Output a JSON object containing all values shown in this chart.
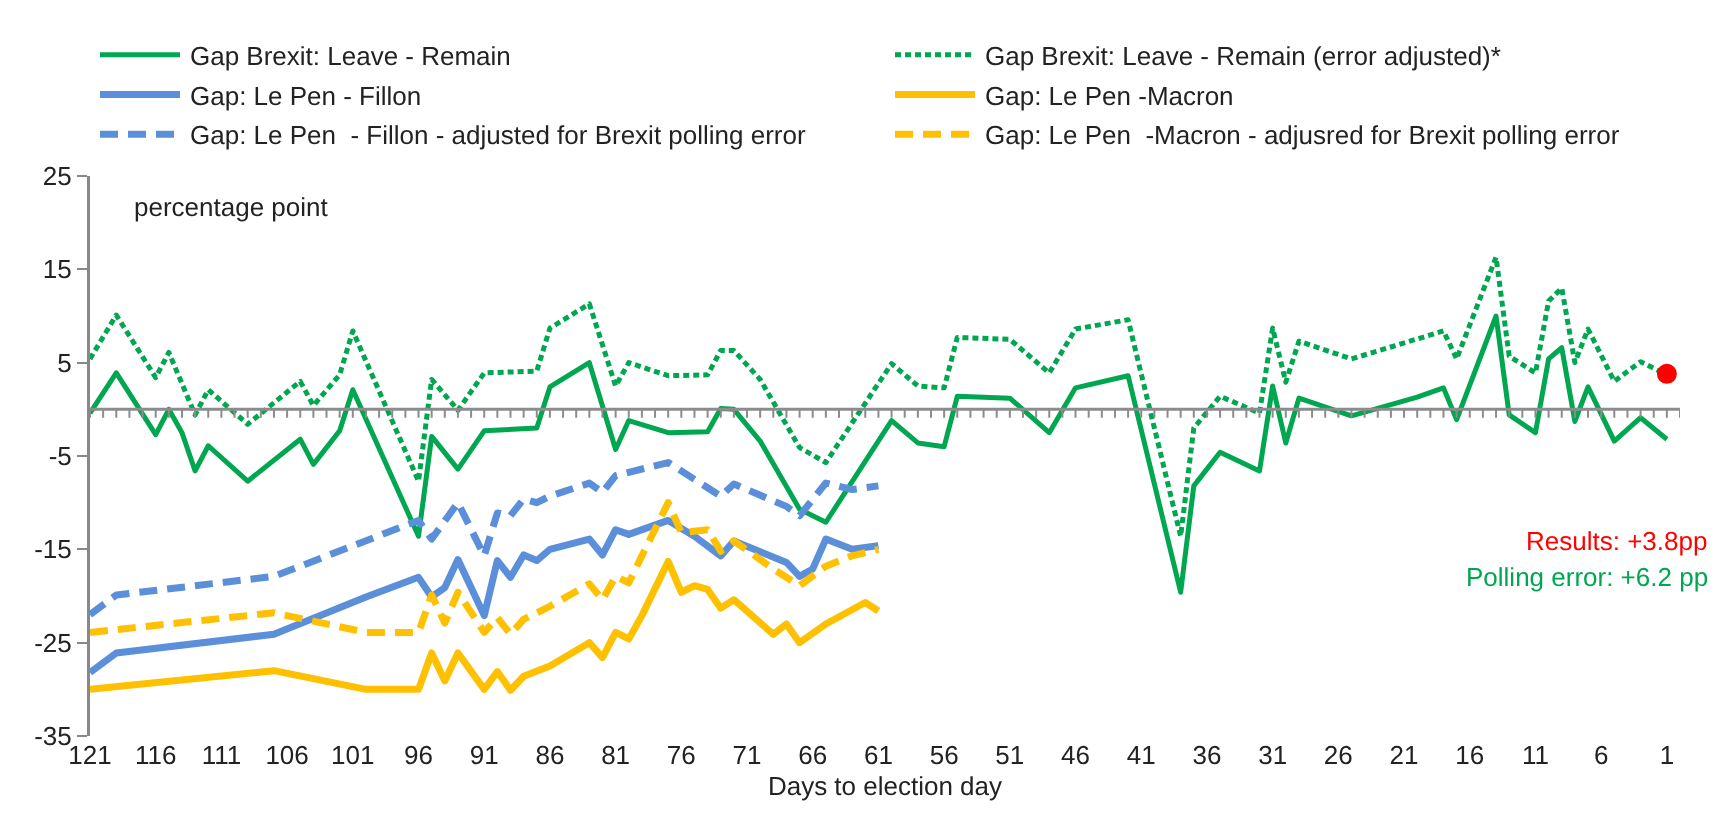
{
  "chart_data": {
    "type": "line",
    "xlabel": "Days to election day",
    "ylabel": "percentage point",
    "xlim": [
      121,
      0
    ],
    "xticks": [
      121,
      116,
      111,
      106,
      101,
      96,
      91,
      86,
      81,
      76,
      71,
      66,
      61,
      56,
      51,
      46,
      41,
      36,
      31,
      26,
      21,
      16,
      11,
      6,
      1
    ],
    "ylim": [
      -35,
      25
    ],
    "yticks": [
      -35,
      -25,
      -15,
      -5,
      5,
      15,
      25
    ],
    "grid": false,
    "legend": "top",
    "marker": "none",
    "ref_lines": [
      {
        "axis": "y",
        "value": 0,
        "color": "#8c8c8c"
      }
    ],
    "series": [
      {
        "name": "Gap Brexit: Leave - Remain",
        "color": "#00a650",
        "line_style": "solid",
        "x": [
          121,
          119,
          116,
          115,
          114,
          113,
          112,
          109,
          105,
          104,
          102,
          101,
          96,
          95,
          93,
          91,
          87,
          86,
          83,
          81,
          80,
          77,
          74,
          73,
          72,
          70,
          67,
          65,
          60,
          58,
          56,
          55,
          51,
          48,
          46,
          42,
          38,
          37,
          35,
          32,
          31,
          30,
          29,
          25,
          20,
          18,
          17,
          14,
          13,
          11,
          10,
          9,
          8,
          7,
          5,
          3,
          1
        ],
        "values": [
          -0.4,
          3.9,
          -2.7,
          0,
          -2.5,
          -6.6,
          -3.9,
          -7.7,
          -3.2,
          -5.9,
          -2.3,
          2.1,
          -13.6,
          -2.9,
          -6.4,
          -2.3,
          -2,
          2.4,
          5,
          -4.3,
          -1.2,
          -2.5,
          -2.4,
          0.1,
          0,
          -3.4,
          -10.7,
          -12.1,
          -1.2,
          -3.6,
          -4,
          1.4,
          1.2,
          -2.5,
          2.3,
          3.6,
          -19.6,
          -8.2,
          -4.6,
          -6.6,
          2.5,
          -3.6,
          1.2,
          -0.7,
          1.3,
          2.3,
          -1.1,
          10,
          -0.6,
          -2.5,
          5.4,
          6.6,
          -1.3,
          2.4,
          -3.4,
          -0.9,
          -3.2
        ]
      },
      {
        "name": "Gap Brexit: Leave - Remain (error adjusted)*",
        "color": "#00a650",
        "line_style": "dotted",
        "x": [
          121,
          119,
          116,
          115,
          113,
          112,
          109,
          105,
          104,
          102,
          101,
          96,
          95,
          93,
          91,
          87,
          86,
          83,
          81,
          80,
          77,
          74,
          73,
          72,
          70,
          67,
          65,
          60,
          58,
          56,
          55,
          51,
          48,
          46,
          42,
          38,
          37,
          35,
          32,
          31,
          30,
          29,
          25,
          18,
          17,
          14,
          13,
          11,
          10,
          9,
          8,
          7,
          5,
          3,
          1
        ],
        "values": [
          5.4,
          10.1,
          3.4,
          6.1,
          -0.6,
          2.1,
          -1.6,
          3,
          0.4,
          3.7,
          8.4,
          -7.7,
          3.2,
          -0.1,
          3.9,
          4.1,
          8.7,
          11.3,
          2.5,
          5,
          3.6,
          3.7,
          6.3,
          6.3,
          3.2,
          -4.1,
          -5.7,
          4.9,
          2.5,
          2.3,
          7.7,
          7.5,
          3.9,
          8.6,
          9.6,
          -13.6,
          -2,
          1.4,
          -0.4,
          8.7,
          2.9,
          7.3,
          5.4,
          8.4,
          5.4,
          16.3,
          5.7,
          3.9,
          11.6,
          13,
          5,
          8.6,
          3,
          5.1,
          3.7
        ]
      },
      {
        "name": "Gap: Le Pen - Fillon",
        "color": "#5b8fd9",
        "line_style": "solid",
        "x": [
          121,
          119,
          107,
          100,
          96,
          95,
          94,
          93,
          91,
          90,
          89,
          88,
          87,
          86,
          83,
          82,
          81,
          80,
          77,
          75,
          73,
          72,
          68,
          67,
          66,
          65,
          63,
          61
        ],
        "values": [
          -28.2,
          -26.1,
          -24.1,
          -20.1,
          -18,
          -20.1,
          -19.1,
          -16.1,
          -22.1,
          -16.2,
          -18,
          -15.6,
          -16.2,
          -15,
          -13.9,
          -15.6,
          -12.9,
          -13.4,
          -11.9,
          -13.6,
          -15.7,
          -14.1,
          -16.4,
          -17.9,
          -17.1,
          -13.9,
          -15,
          -14.6
        ]
      },
      {
        "name": "Gap: Le Pen -Macron",
        "color": "#ffc000",
        "line_style": "solid",
        "x": [
          121,
          107,
          100,
          96,
          95,
          94,
          93,
          91,
          90,
          89,
          88,
          86,
          83,
          82,
          81,
          80,
          79,
          77,
          76,
          75,
          74,
          73,
          72,
          69,
          68,
          67,
          65,
          62,
          61
        ],
        "values": [
          -30,
          -28,
          -30,
          -30,
          -26.1,
          -29.1,
          -26.1,
          -30,
          -28.1,
          -30.1,
          -28.6,
          -27.5,
          -25,
          -26.6,
          -23.9,
          -24.6,
          -22.1,
          -16.3,
          -19.6,
          -18.9,
          -19.3,
          -21.3,
          -20.4,
          -24.1,
          -23,
          -25,
          -23,
          -20.7,
          -21.6
        ]
      },
      {
        "name": "Gap: Le Pen  - Fillon - adjusted for Brexit polling error",
        "color": "#5b8fd9",
        "line_style": "dashed",
        "x": [
          121,
          119,
          107,
          96,
          95,
          93,
          91,
          90,
          89,
          88,
          87,
          86,
          83,
          82,
          81,
          77,
          73,
          72,
          68,
          67,
          65,
          63,
          61
        ],
        "values": [
          -22,
          -19.9,
          -17.9,
          -11.9,
          -13.9,
          -10,
          -15.7,
          -11.1,
          -11.4,
          -9.6,
          -10,
          -9.3,
          -7.9,
          -8.9,
          -7.1,
          -5.7,
          -9.3,
          -8,
          -10.4,
          -11.4,
          -7.9,
          -8.6,
          -8.2
        ]
      },
      {
        "name": "Gap: Le Pen  -Macron - adjusred for Brexit polling error",
        "color": "#ffc000",
        "line_style": "dashed",
        "x": [
          121,
          107,
          100,
          96,
          95,
          94,
          93,
          91,
          90,
          89,
          88,
          86,
          83,
          82,
          81,
          80,
          79,
          77,
          76,
          74,
          73,
          72,
          69,
          67,
          65,
          63,
          61
        ],
        "values": [
          -23.9,
          -21.8,
          -23.9,
          -23.9,
          -19.9,
          -22.9,
          -19.6,
          -23.9,
          -22.3,
          -24.1,
          -22.5,
          -21.1,
          -18.7,
          -20.4,
          -17.9,
          -18.6,
          -15.7,
          -10,
          -13.2,
          -12.9,
          -15.2,
          -14.1,
          -17.1,
          -18.9,
          -16.8,
          -15.7,
          -15
        ]
      },
      {
        "type": "scatter",
        "color": "#ff0000",
        "marker": "circle",
        "x": [
          1
        ],
        "values": [
          3.8
        ]
      }
    ],
    "annotations": [
      "Results: +3.8pp",
      "Polling error: +6.2 pp"
    ]
  }
}
